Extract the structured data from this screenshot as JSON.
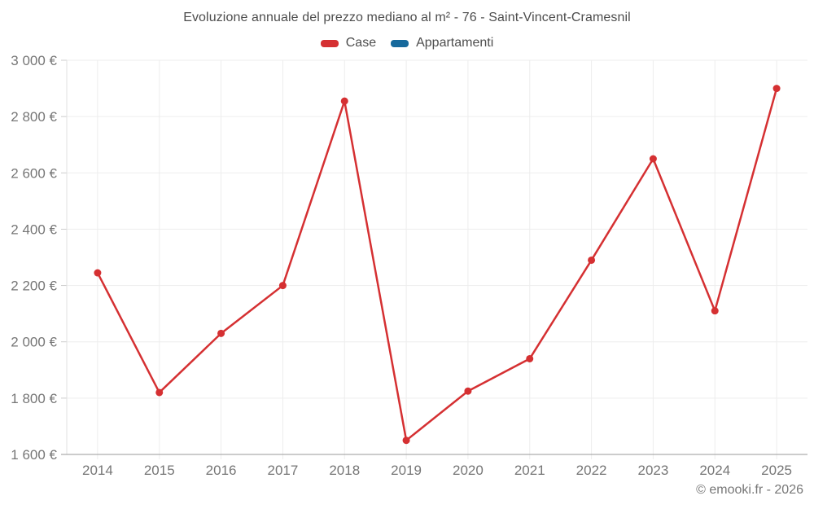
{
  "chart": {
    "title": "Evoluzione annuale del prezzo mediano al m² - 76 - Saint-Vincent-Cramesnil",
    "attribution": "© emooki.fr - 2026"
  },
  "chart_data": {
    "type": "line",
    "title": "Evoluzione annuale del prezzo mediano al m² - 76 - Saint-Vincent-Cramesnil",
    "categories": [
      "2014",
      "2015",
      "2016",
      "2017",
      "2018",
      "2019",
      "2020",
      "2021",
      "2022",
      "2023",
      "2024",
      "2025"
    ],
    "series": [
      {
        "name": "Case",
        "color": "#d53032",
        "values": [
          2245,
          1820,
          2030,
          2200,
          2855,
          1650,
          1825,
          1940,
          2290,
          2650,
          2110,
          2900
        ]
      },
      {
        "name": "Appartamenti",
        "color": "#16699c",
        "values": []
      }
    ],
    "xlabel": "",
    "ylabel": "",
    "ylim": [
      1600,
      3000
    ],
    "y_ticks": [
      {
        "value": 1600,
        "label": "1 600 €"
      },
      {
        "value": 1800,
        "label": "1 800 €"
      },
      {
        "value": 2000,
        "label": "2 000 €"
      },
      {
        "value": 2200,
        "label": "2 200 €"
      },
      {
        "value": 2400,
        "label": "2 400 €"
      },
      {
        "value": 2600,
        "label": "2 600 €"
      },
      {
        "value": 2800,
        "label": "2 800 €"
      },
      {
        "value": 3000,
        "label": "3 000 €"
      }
    ],
    "grid": true,
    "legend_position": "top",
    "marker": "circle",
    "colors": {
      "grid": "#ededed",
      "axis": "#e2e2e2",
      "baseline": "#9a9a9a",
      "tick": "#cccccc",
      "text": "#767676",
      "title": "#4d4d4d"
    }
  }
}
